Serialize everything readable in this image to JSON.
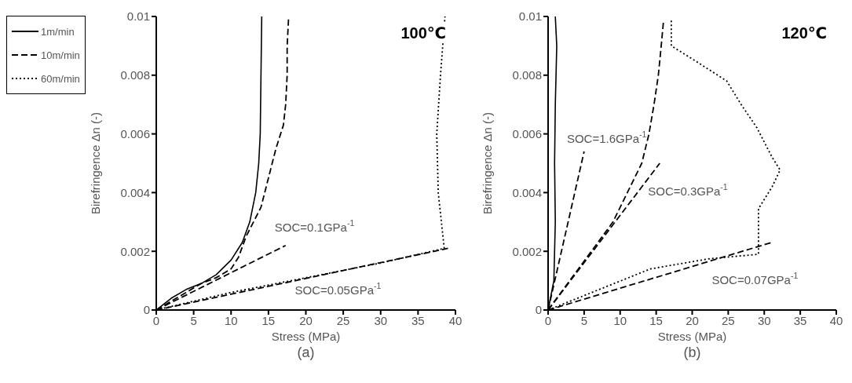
{
  "chart_data": [
    {
      "type": "line",
      "title": "100℃",
      "xlabel": "Stress (MPa)",
      "ylabel": "Birefringence Δn (-)",
      "xlim": [
        0,
        40
      ],
      "xticks": [
        0,
        5,
        10,
        15,
        20,
        25,
        30,
        35,
        40
      ],
      "ylim": [
        0,
        0.01
      ],
      "yticks": [
        0,
        0.002,
        0.004,
        0.006,
        0.008,
        0.01
      ],
      "grid": false,
      "legend": "top left",
      "marker": "none",
      "annotations": [
        "(a)",
        {
          "text": "SOC=0.1GPa$^{-1}$",
          "x": 17.3,
          "y": 0.0022
        },
        {
          "text": "SOC=0.05GPa$^{-1}$",
          "x": 20,
          "y": 0.00108
        }
      ],
      "series": [
        {
          "name": "1m/min",
          "color": "#000000",
          "line_style": "solid",
          "x": [
            0,
            2,
            4,
            6,
            8,
            10,
            11.5,
            12.5,
            13.3,
            13.7,
            13.9,
            14,
            14.1
          ],
          "values": [
            0,
            0.0004,
            0.0007,
            0.0009,
            0.0012,
            0.0017,
            0.0023,
            0.003,
            0.004,
            0.005,
            0.006,
            0.008,
            0.01
          ]
        },
        {
          "name": "10m/min",
          "color": "#000000",
          "line_style": "dashed",
          "x": [
            0,
            2,
            4,
            6,
            8,
            10,
            11,
            12,
            13,
            14,
            15,
            16,
            17,
            17.3,
            17.5,
            17.5,
            17.7
          ],
          "values": [
            0,
            0.0003,
            0.0006,
            0.0009,
            0.0011,
            0.0014,
            0.0018,
            0.0025,
            0.003,
            0.0035,
            0.0045,
            0.0055,
            0.0063,
            0.007,
            0.008,
            0.009,
            0.01
          ]
        },
        {
          "name": "60m/min",
          "color": "#000000",
          "line_style": "dotted",
          "x": [
            0,
            10,
            20,
            30,
            38.5,
            37.7,
            37.5,
            38,
            38.6
          ],
          "values": [
            0,
            0.0006,
            0.0011,
            0.0016,
            0.0021,
            0.004,
            0.006,
            0.008,
            0.01
          ]
        },
        {
          "color": "#000000",
          "line_style": "dashed",
          "x": [
            0,
            17.3
          ],
          "values": [
            0,
            0.0022
          ]
        },
        {
          "color": "#000000",
          "line_style": "dashed",
          "x": [
            0,
            39
          ],
          "values": [
            0,
            0.0021
          ]
        }
      ]
    },
    {
      "type": "line",
      "title": "120℃",
      "xlabel": "Stress (MPa)",
      "ylabel": "Birefringence Δn (-)",
      "xlim": [
        0,
        40
      ],
      "xticks": [
        0,
        5,
        10,
        15,
        20,
        25,
        30,
        35,
        40
      ],
      "ylim": [
        0,
        0.01
      ],
      "yticks": [
        0,
        0.002,
        0.004,
        0.006,
        0.008,
        0.01
      ],
      "grid": false,
      "marker": "none",
      "annotations": [
        "(b)",
        {
          "text": "SOC=1.6GPa$^{-1}$",
          "x": 5,
          "y": 0.0054
        },
        {
          "text": "SOC=0.3GPa$^{-1}$",
          "x": 15.5,
          "y": 0.005
        },
        {
          "text": "SOC=0.07GPa$^{-1}$",
          "x": 31,
          "y": 0.0023
        }
      ],
      "series": [
        {
          "color": "#000000",
          "line_style": "solid",
          "x": [
            0,
            0.8,
            1,
            0.9,
            1,
            1.2,
            1
          ],
          "values": [
            0,
            0.001,
            0.003,
            0.005,
            0.007,
            0.009,
            0.01
          ]
        },
        {
          "color": "#000000",
          "line_style": "dashed",
          "x": [
            0,
            3,
            6,
            9,
            11,
            13,
            14,
            14.7,
            15.3,
            15.7,
            16
          ],
          "values": [
            0,
            0.001,
            0.002,
            0.003,
            0.004,
            0.005,
            0.006,
            0.007,
            0.008,
            0.009,
            0.0098
          ]
        },
        {
          "color": "#000000",
          "line_style": "dotted",
          "x": [
            0,
            6.8,
            14.2,
            22.2,
            29.2,
            29.2,
            31.1,
            32.2,
            31.1,
            29,
            26.8,
            24.8,
            21,
            17.1,
            17.1
          ],
          "values": [
            0,
            0.00067,
            0.0014,
            0.00174,
            0.0019,
            0.00345,
            0.0042,
            0.00477,
            0.0052,
            0.0062,
            0.007,
            0.0078,
            0.0084,
            0.009,
            0.0099
          ]
        },
        {
          "color": "#000000",
          "line_style": "dashed",
          "x": [
            0,
            5
          ],
          "values": [
            0,
            0.0054
          ]
        },
        {
          "color": "#000000",
          "line_style": "dashed",
          "x": [
            0,
            15.5
          ],
          "values": [
            0,
            0.005
          ]
        },
        {
          "color": "#000000",
          "line_style": "dashed",
          "x": [
            0,
            31
          ],
          "values": [
            0,
            0.0023
          ]
        }
      ]
    }
  ]
}
